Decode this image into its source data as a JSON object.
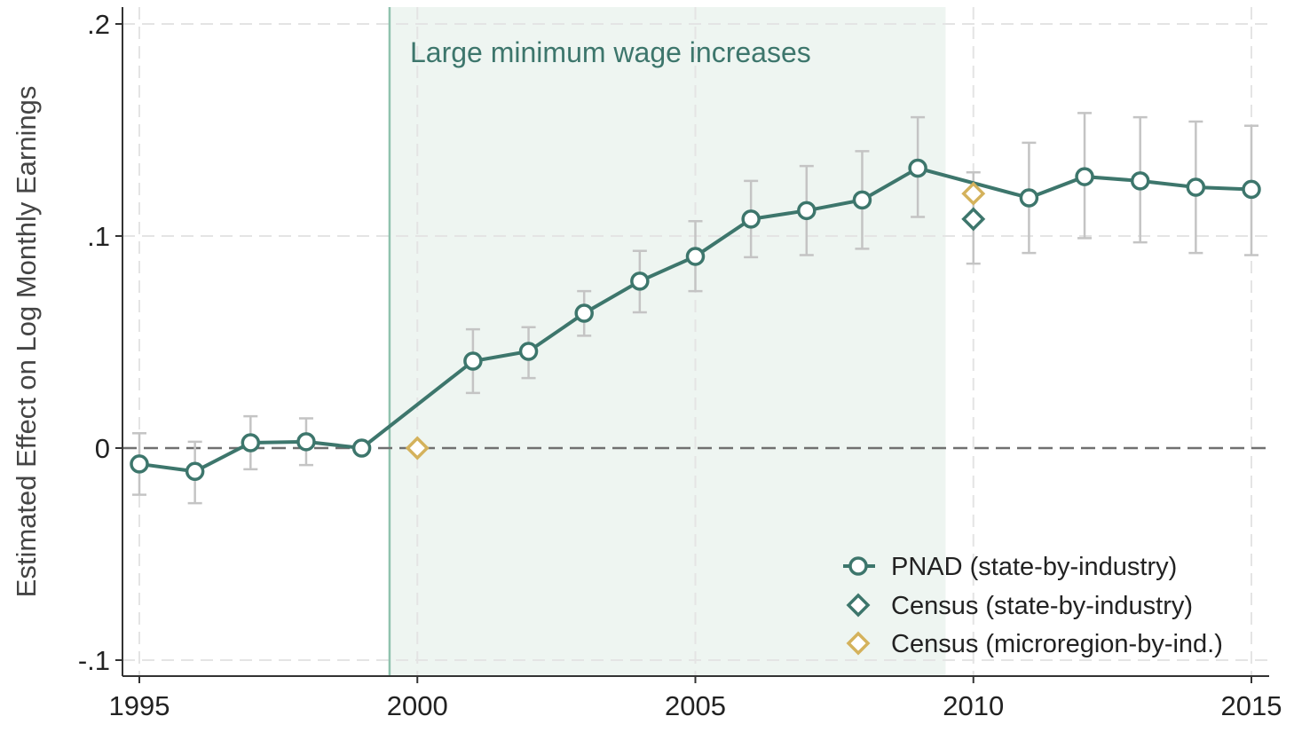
{
  "chart_data": {
    "type": "line",
    "title": "",
    "xlabel": "",
    "ylabel": "Estimated Effect on Log Monthly Earnings",
    "xlim": [
      1994.8,
      2015.3
    ],
    "ylim": [
      -0.107,
      0.207
    ],
    "xticks": [
      1995,
      2000,
      2005,
      2010,
      2015
    ],
    "yticks": [
      {
        "v": 0.2,
        "label": ".2"
      },
      {
        "v": 0.1,
        "label": ".1"
      },
      {
        "v": 0,
        "label": "0"
      },
      {
        "v": -0.1,
        "label": "-.1"
      }
    ],
    "grid": true,
    "legend_position": "bottom-right",
    "annotation": {
      "text": "Large minimum wage increases",
      "shade_from": 1999.5,
      "shade_to": 2009.5
    },
    "colors": {
      "pnad": "#3d766c",
      "census_state": "#3d766c",
      "census_micro": "#d4b25c",
      "ci": "#c4c4c4",
      "shade": "#eef5f1"
    },
    "series": [
      {
        "name": "PNAD (state-by-industry)",
        "marker": "circle",
        "points": [
          {
            "x": 1995,
            "y": -0.0075,
            "lo": -0.022,
            "hi": 0.007
          },
          {
            "x": 1996,
            "y": -0.011,
            "lo": -0.026,
            "hi": 0.003
          },
          {
            "x": 1997,
            "y": 0.0025,
            "lo": -0.01,
            "hi": 0.015
          },
          {
            "x": 1998,
            "y": 0.003,
            "lo": -0.008,
            "hi": 0.014
          },
          {
            "x": 1999,
            "y": 0,
            "lo": null,
            "hi": null
          },
          {
            "x": 2001,
            "y": 0.041,
            "lo": 0.026,
            "hi": 0.056
          },
          {
            "x": 2002,
            "y": 0.0456,
            "lo": 0.033,
            "hi": 0.057
          },
          {
            "x": 2003,
            "y": 0.0636,
            "lo": 0.053,
            "hi": 0.074
          },
          {
            "x": 2004,
            "y": 0.0787,
            "lo": 0.064,
            "hi": 0.093
          },
          {
            "x": 2005,
            "y": 0.0904,
            "lo": 0.074,
            "hi": 0.107
          },
          {
            "x": 2006,
            "y": 0.108,
            "lo": 0.09,
            "hi": 0.126
          },
          {
            "x": 2007,
            "y": 0.112,
            "lo": 0.091,
            "hi": 0.133
          },
          {
            "x": 2008,
            "y": 0.117,
            "lo": 0.094,
            "hi": 0.14
          },
          {
            "x": 2009,
            "y": 0.132,
            "lo": 0.109,
            "hi": 0.156
          },
          {
            "x": 2011,
            "y": 0.118,
            "lo": 0.092,
            "hi": 0.144
          },
          {
            "x": 2012,
            "y": 0.128,
            "lo": 0.099,
            "hi": 0.158
          },
          {
            "x": 2013,
            "y": 0.126,
            "lo": 0.097,
            "hi": 0.156
          },
          {
            "x": 2014,
            "y": 0.123,
            "lo": 0.092,
            "hi": 0.154
          },
          {
            "x": 2015,
            "y": 0.122,
            "lo": 0.091,
            "hi": 0.152
          }
        ]
      },
      {
        "name": "Census (state-by-industry)",
        "marker": "diamond",
        "points": [
          {
            "x": 2010,
            "y": 0.108,
            "lo": 0.087,
            "hi": 0.13
          }
        ]
      },
      {
        "name": "Census (microregion-by-ind.)",
        "marker": "diamond",
        "points": [
          {
            "x": 2000,
            "y": 0,
            "lo": null,
            "hi": null
          },
          {
            "x": 2010,
            "y": 0.12,
            "lo": null,
            "hi": null
          }
        ]
      }
    ]
  }
}
